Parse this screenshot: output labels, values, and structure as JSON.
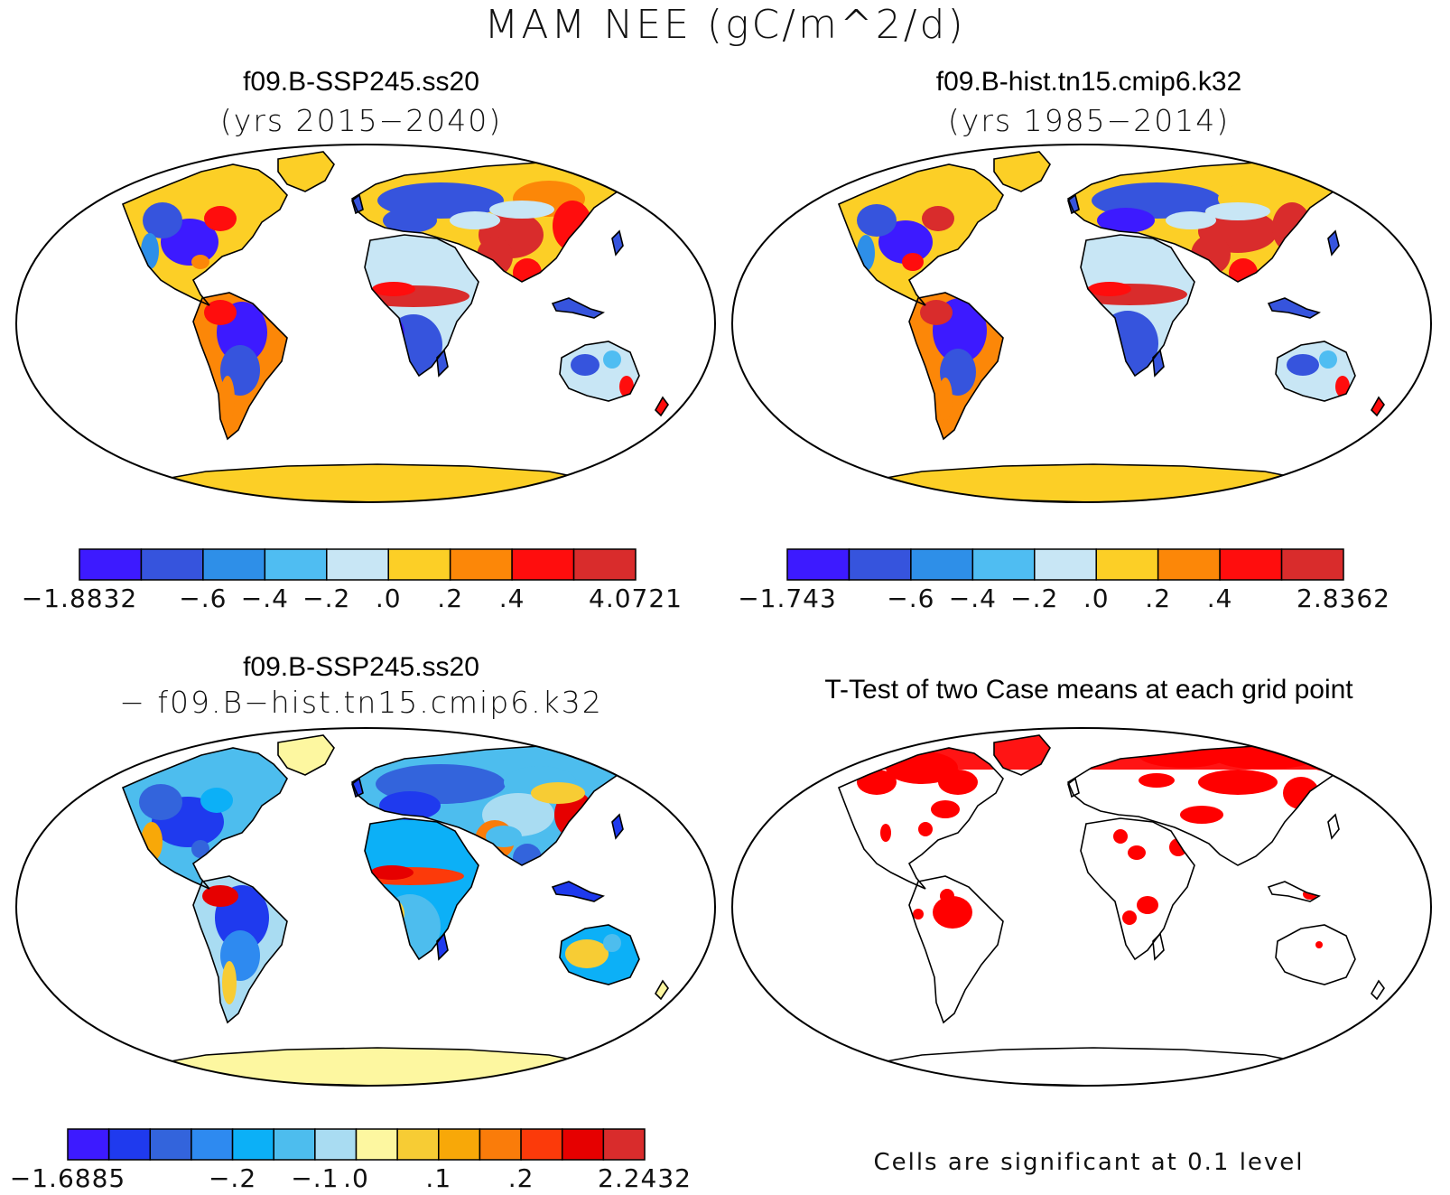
{
  "figure": {
    "title": "MAM NEE (gC/m^2/d)"
  },
  "panels": [
    {
      "id": "p1",
      "title": "f09.B-SSP245.ss20",
      "subtitle": "(yrs 2015−2040)",
      "colorbar": {
        "colors": [
          "#3d1aff",
          "#3654dd",
          "#2e8fe8",
          "#4fbdf2",
          "#c8e6f5",
          "#fccf26",
          "#fc8708",
          "#ff0d0d",
          "#d92c2c"
        ],
        "tick_labels": [
          "−1.8832",
          "−.6",
          "−.4",
          "−.2",
          ".0",
          ".2",
          ".4",
          "4.0721"
        ]
      }
    },
    {
      "id": "p2",
      "title": "f09.B-hist.tn15.cmip6.k32",
      "subtitle": "(yrs 1985−2014)",
      "colorbar": {
        "colors": [
          "#3d1aff",
          "#3654dd",
          "#2e8fe8",
          "#4fbdf2",
          "#c8e6f5",
          "#fccf26",
          "#fc8708",
          "#ff0d0d",
          "#d92c2c"
        ],
        "tick_labels": [
          "−1.743",
          "−.6",
          "−.4",
          "−.2",
          ".0",
          ".2",
          ".4",
          "2.8362"
        ]
      }
    },
    {
      "id": "p3",
      "title": "f09.B-SSP245.ss20",
      "subtitle": "−  f09.B−hist.tn15.cmip6.k32",
      "colorbar": {
        "colors": [
          "#3d1aff",
          "#1f3aee",
          "#3364dc",
          "#2e8af0",
          "#0cb0f7",
          "#4dbdee",
          "#a9dcf2",
          "#fdf7a0",
          "#f7cc34",
          "#f8a808",
          "#fa7c0a",
          "#fc3a0a",
          "#e60000",
          "#d92c2c"
        ],
        "tick_labels": [
          "−1.6885",
          "−.2",
          "−.1",
          ".0",
          ".1",
          ".2",
          "2.2432"
        ]
      }
    },
    {
      "id": "p4",
      "title": "T-Test of two Case means at each grid point",
      "note": "Cells are significant at 0.1 level"
    }
  ]
}
